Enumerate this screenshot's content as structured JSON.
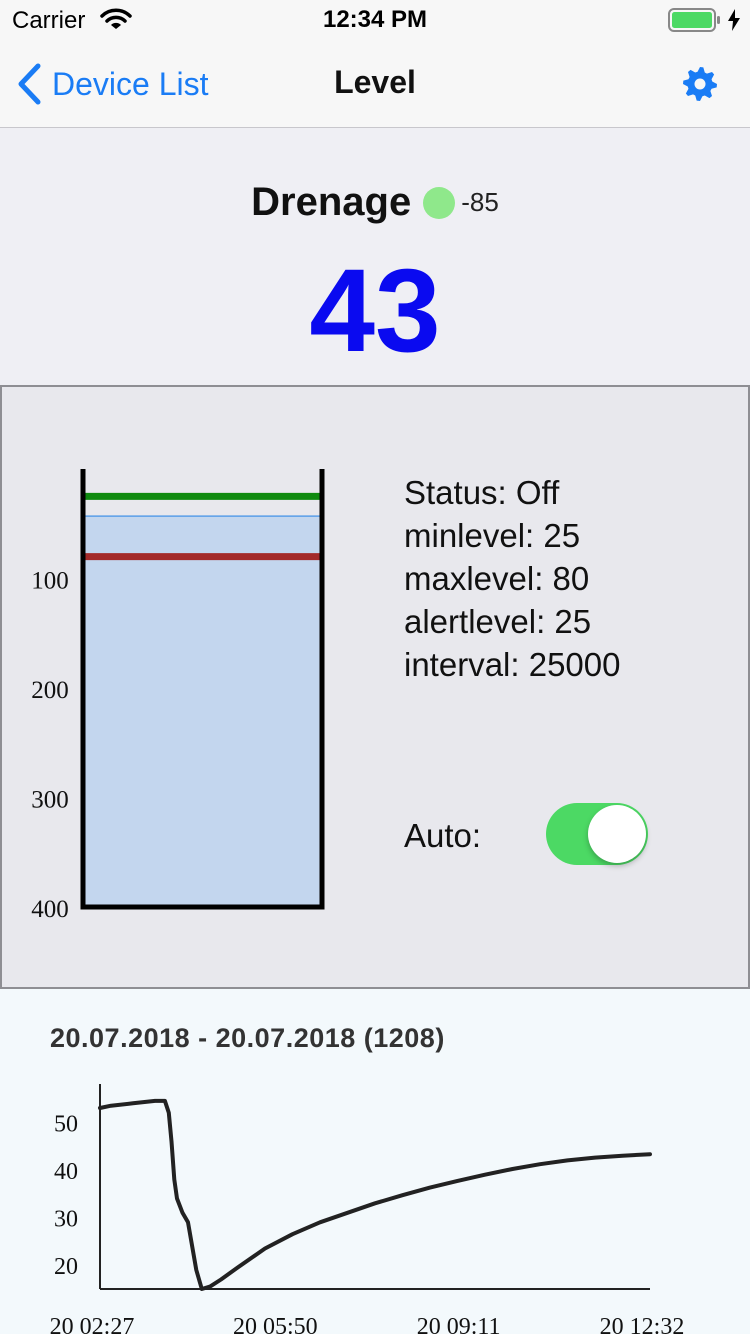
{
  "status_bar": {
    "carrier": "Carrier",
    "time": "12:34 PM"
  },
  "nav": {
    "back_label": "Device List",
    "title": "Level",
    "settings_icon": "gear-icon"
  },
  "device": {
    "name": "Drenage",
    "signal": "-85",
    "signal_color": "#8fe88b",
    "level": "43"
  },
  "tank": {
    "scale_labels": [
      "100",
      "200",
      "300",
      "400"
    ],
    "scale_max": 400,
    "fill_level": 43,
    "maxlevel_line": 25,
    "minlevel_line": 80,
    "colors": {
      "fill": "#c3d6ee",
      "fill_edge": "#5a9ee8",
      "max_line": "#0f8a0f",
      "min_line": "#a32a2a",
      "walls": "#000000"
    }
  },
  "info": {
    "status": "Status: Off",
    "minlevel": "minlevel: 25",
    "maxlevel": "maxlevel: 80",
    "alertlevel": "alertlevel: 25",
    "interval": "interval: 25000"
  },
  "auto": {
    "label": "Auto:",
    "on": true,
    "color": "#4cd964"
  },
  "history": {
    "range": "20.07.2018 - 20.07.2018 (1208)"
  },
  "chart_data": {
    "type": "line",
    "title": "",
    "xlabel": "",
    "ylabel": "",
    "x_tick_labels": [
      "20 02:27",
      "20 05:50",
      "20 09:11",
      "20 12:32"
    ],
    "y_ticks": [
      20,
      30,
      40,
      50
    ],
    "ylim": [
      15,
      57
    ],
    "x_domain": [
      0,
      1
    ],
    "grid": false,
    "series": [
      {
        "color": "#222222",
        "x": [
          0,
          0.02,
          0.06,
          0.1,
          0.118,
          0.125,
          0.13,
          0.135,
          0.14,
          0.15,
          0.16,
          0.175,
          0.185,
          0.2,
          0.22,
          0.25,
          0.3,
          0.35,
          0.4,
          0.45,
          0.5,
          0.55,
          0.6,
          0.65,
          0.7,
          0.75,
          0.8,
          0.85,
          0.9,
          0.95,
          1.0
        ],
        "values": [
          53,
          53.5,
          54,
          54.5,
          54.5,
          52,
          46,
          38,
          34,
          31,
          29,
          19,
          15,
          15.5,
          17,
          19.5,
          23.5,
          26.5,
          29,
          31,
          33,
          34.7,
          36.3,
          37.7,
          39,
          40.2,
          41.2,
          42,
          42.6,
          43,
          43.3
        ]
      }
    ]
  }
}
